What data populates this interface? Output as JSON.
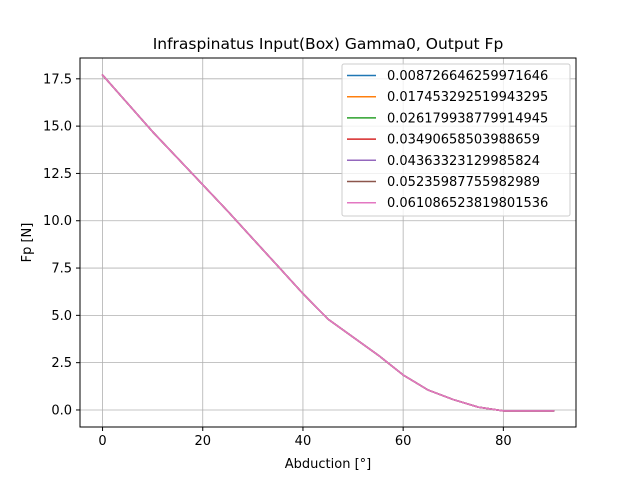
{
  "chart_data": {
    "type": "line",
    "title": "Infraspinatus Input(Box) Gamma0, Output Fp",
    "xlabel": "Abduction [°]",
    "ylabel": "Fp [N]",
    "xlim": [
      -4.5,
      94.5
    ],
    "ylim": [
      -0.9,
      18.6
    ],
    "xticks": [
      0,
      20,
      40,
      60,
      80
    ],
    "yticks": [
      0.0,
      2.5,
      5.0,
      7.5,
      10.0,
      12.5,
      15.0,
      17.5
    ],
    "xtick_labels": [
      "0",
      "20",
      "40",
      "60",
      "80"
    ],
    "ytick_labels": [
      "0.0",
      "2.5",
      "5.0",
      "7.5",
      "10.0",
      "12.5",
      "15.0",
      "17.5"
    ],
    "grid": true,
    "legend_position": "top-right",
    "x": [
      0,
      5,
      10,
      15,
      20,
      25,
      30,
      35,
      40,
      45,
      50,
      55,
      60,
      65,
      70,
      75,
      80,
      85,
      90
    ],
    "series": [
      {
        "name": "0.008726646259971646",
        "color": "#1f77b4",
        "values": [
          17.7,
          16.2,
          14.7,
          13.3,
          11.9,
          10.5,
          9.05,
          7.6,
          6.15,
          4.8,
          3.85,
          2.9,
          1.85,
          1.05,
          0.55,
          0.15,
          -0.05,
          -0.05,
          -0.05
        ]
      },
      {
        "name": "0.017453292519943295",
        "color": "#ff7f0e",
        "values": [
          17.7,
          16.2,
          14.7,
          13.3,
          11.9,
          10.5,
          9.05,
          7.6,
          6.15,
          4.8,
          3.85,
          2.9,
          1.85,
          1.05,
          0.55,
          0.15,
          -0.05,
          -0.05,
          -0.05
        ]
      },
      {
        "name": "0.026179938779914945",
        "color": "#2ca02c",
        "values": [
          17.7,
          16.2,
          14.7,
          13.3,
          11.9,
          10.5,
          9.05,
          7.6,
          6.15,
          4.8,
          3.85,
          2.9,
          1.85,
          1.05,
          0.55,
          0.15,
          -0.05,
          -0.05,
          -0.05
        ]
      },
      {
        "name": "0.03490658503988659",
        "color": "#d62728",
        "values": [
          17.7,
          16.2,
          14.7,
          13.3,
          11.9,
          10.5,
          9.05,
          7.6,
          6.15,
          4.8,
          3.85,
          2.9,
          1.85,
          1.05,
          0.55,
          0.15,
          -0.05,
          -0.05,
          -0.05
        ]
      },
      {
        "name": "0.04363323129985824",
        "color": "#9467bd",
        "values": [
          17.7,
          16.2,
          14.7,
          13.3,
          11.9,
          10.5,
          9.05,
          7.6,
          6.15,
          4.8,
          3.85,
          2.9,
          1.85,
          1.05,
          0.55,
          0.15,
          -0.05,
          -0.05,
          -0.05
        ]
      },
      {
        "name": "0.05235987755982989",
        "color": "#8c564b",
        "values": [
          17.7,
          16.2,
          14.7,
          13.3,
          11.9,
          10.5,
          9.05,
          7.6,
          6.15,
          4.8,
          3.85,
          2.9,
          1.85,
          1.05,
          0.55,
          0.15,
          -0.05,
          -0.05,
          -0.05
        ]
      },
      {
        "name": "0.061086523819801536",
        "color": "#e377c2",
        "values": [
          17.7,
          16.2,
          14.7,
          13.3,
          11.9,
          10.5,
          9.05,
          7.6,
          6.15,
          4.8,
          3.85,
          2.9,
          1.85,
          1.05,
          0.55,
          0.15,
          -0.05,
          -0.05,
          -0.05
        ]
      }
    ]
  }
}
